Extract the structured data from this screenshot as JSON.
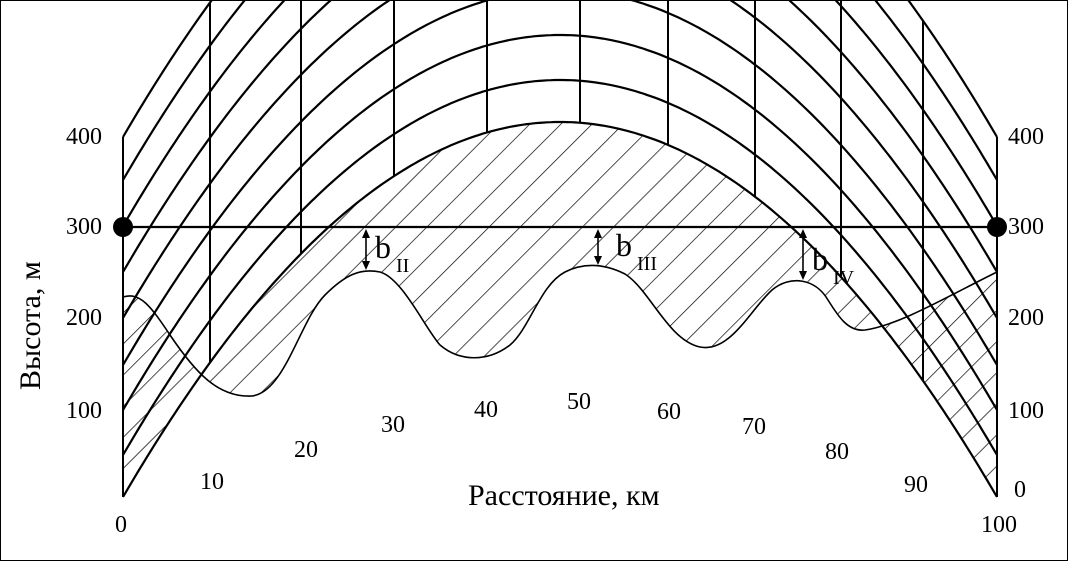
{
  "diagram": {
    "axis_title_y": "Высота, м",
    "axis_title_x": "Расстояние, км",
    "left_height_ticks": [
      "400",
      "300",
      "200",
      "100"
    ],
    "right_height_ticks": [
      "400",
      "300",
      "200",
      "100",
      "0"
    ],
    "distance_ticks": [
      "0",
      "10",
      "20",
      "30",
      "40",
      "50",
      "60",
      "70",
      "80",
      "90",
      "100"
    ],
    "clearances": [
      {
        "letter": "b",
        "sub": "II"
      },
      {
        "letter": "b",
        "sub": "III"
      },
      {
        "letter": "b",
        "sub": "IV"
      }
    ]
  }
}
